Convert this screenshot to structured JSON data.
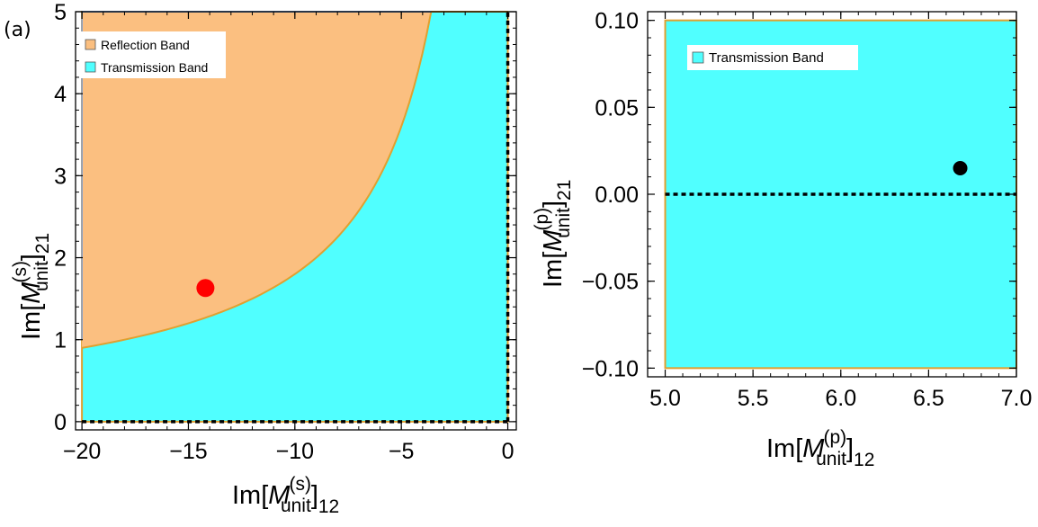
{
  "chart_data": [
    {
      "type": "area",
      "panel_label": "(a)",
      "xlim": [
        -20.3,
        0.4
      ],
      "ylim": [
        -0.1,
        5.0
      ],
      "xticks": [
        -20,
        -15,
        -10,
        -5,
        0
      ],
      "xtick_labels": [
        "−20",
        "−15",
        "−10",
        "−5",
        "0"
      ],
      "yticks": [
        0,
        1,
        2,
        3,
        4,
        5
      ],
      "ytick_labels": [
        "0",
        "1",
        "2",
        "3",
        "4",
        "5"
      ],
      "xlabel": {
        "pre": "Im[",
        "M": "M",
        "sup": "(s)",
        "sub": "unit",
        "post": "]",
        "idx": "12"
      },
      "ylabel": {
        "pre": "Im[",
        "M": "M",
        "sup": "(s)",
        "sub": "unit",
        "post": "]",
        "idx": "21"
      },
      "legend": [
        {
          "label": "Reflection Band",
          "color": "#FBBF80"
        },
        {
          "label": "Transmission Band",
          "color": "#50FFFF"
        }
      ],
      "legend_position": "top-left",
      "region": {
        "xmin": -20,
        "xmax": 0,
        "ymin": 0,
        "ymax": 5
      },
      "boundary_curve": {
        "description": "y = 18 / (-x), boundary between reflection and transmission bands",
        "k": 18,
        "x": [
          -20,
          -18,
          -16,
          -14,
          -12,
          -10,
          -8,
          -6,
          -5,
          -4,
          -3.6
        ],
        "y": [
          0.9,
          1.0,
          1.125,
          1.286,
          1.5,
          1.8,
          2.25,
          3.0,
          3.6,
          4.5,
          5.0
        ]
      },
      "dashed_lines": [
        {
          "orientation": "horizontal",
          "value": 0
        },
        {
          "orientation": "vertical",
          "value": 0
        }
      ],
      "marker": {
        "x": -14.2,
        "y": 1.63,
        "color": "#FF0000"
      }
    },
    {
      "type": "area",
      "xlim": [
        4.9,
        7.0
      ],
      "ylim": [
        -0.105,
        0.105
      ],
      "xticks": [
        5.0,
        5.5,
        6.0,
        6.5,
        7.0
      ],
      "xtick_labels": [
        "5.0",
        "5.5",
        "6.0",
        "6.5",
        "7.0"
      ],
      "yticks": [
        0.1,
        0.05,
        0.0,
        -0.05,
        -0.1
      ],
      "ytick_labels": [
        "0.10",
        "0.05",
        "0.00",
        "−0.05",
        "−0.10"
      ],
      "xlabel": {
        "pre": "Im[",
        "M": "M",
        "sup": "(p)",
        "sub": "unit",
        "post": "]",
        "idx": "12"
      },
      "ylabel": {
        "pre": "Im[",
        "M": "M",
        "sup": "(p)",
        "sub": "unit",
        "post": "]",
        "idx": "21"
      },
      "legend": [
        {
          "label": "Transmission Band",
          "color": "#50FFFF"
        }
      ],
      "legend_position": "top-left",
      "region": {
        "xmin": 5.0,
        "xmax": 7.0,
        "ymin": -0.1,
        "ymax": 0.1
      },
      "dashed_lines": [
        {
          "orientation": "horizontal",
          "value": 0.0
        }
      ],
      "marker": {
        "x": 6.68,
        "y": 0.015,
        "color": "#000000"
      }
    }
  ]
}
